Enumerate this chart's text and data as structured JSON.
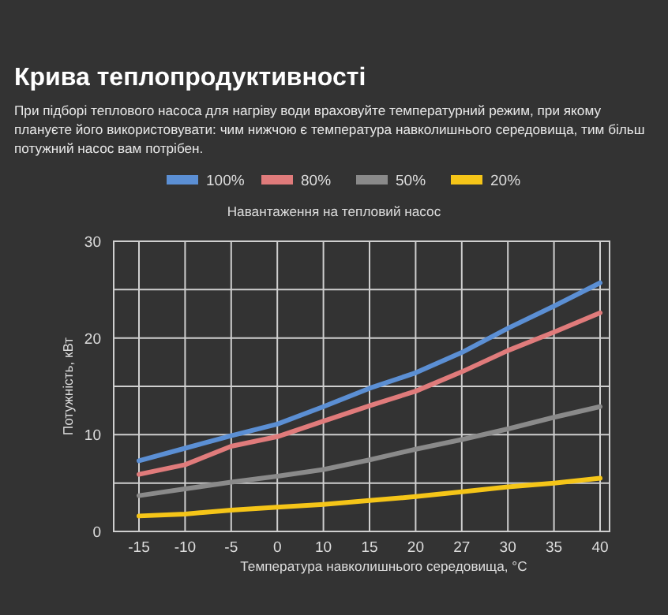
{
  "chart_data": {
    "type": "line",
    "title": "Крива теплопродуктивності",
    "subtitle": "При підборі теплового насоса для нагріву води враховуйте температурний режим, при якому плануєте його використовувати: чим нижчою є температура навколишнього середовища, тим більш потужний насос вам потрібен.",
    "legend_title": "Навантаження на тепловий насос",
    "xlabel": "Температура навколишнього середовища, °C",
    "ylabel": "Потужність, кВт",
    "categories": [
      "-15",
      "-10",
      "-5",
      "0",
      "10",
      "15",
      "20",
      "27",
      "30",
      "35",
      "40"
    ],
    "series": [
      {
        "name": "100%",
        "color": "#5b8fd4",
        "values": [
          7.3,
          8.6,
          9.9,
          11.1,
          12.9,
          14.8,
          16.4,
          18.5,
          21.0,
          23.3,
          25.7
        ]
      },
      {
        "name": "80%",
        "color": "#e07b7b",
        "values": [
          5.9,
          6.9,
          8.8,
          9.8,
          11.4,
          13.0,
          14.5,
          16.5,
          18.7,
          20.6,
          22.6
        ]
      },
      {
        "name": "50%",
        "color": "#8a8a8a",
        "values": [
          3.7,
          4.4,
          5.1,
          5.7,
          6.4,
          7.4,
          8.5,
          9.5,
          10.6,
          11.8,
          12.9
        ]
      },
      {
        "name": "20%",
        "color": "#f5c518",
        "values": [
          1.6,
          1.8,
          2.2,
          2.5,
          2.8,
          3.2,
          3.6,
          4.1,
          4.6,
          5.0,
          5.5
        ]
      }
    ],
    "ylim": [
      0,
      30
    ],
    "yticks": [
      0,
      {
        "value": 5,
        "label": null
      },
      10,
      {
        "value": 15,
        "label": null
      },
      20,
      {
        "value": 25,
        "label": null
      },
      30
    ],
    "grid": true,
    "legend": "top",
    "marker": "none",
    "line_style": "solid"
  }
}
